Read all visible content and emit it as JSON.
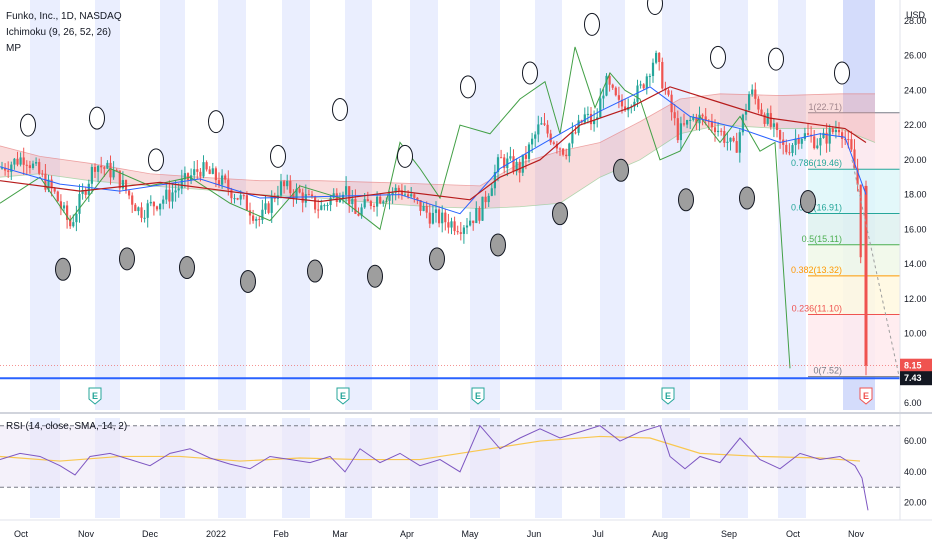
{
  "header": {
    "symbol_line": "Funko, Inc., 1D, NASDAQ",
    "indicator1": "Ichimoku (9, 26, 52, 26)",
    "indicator2": "MP",
    "currency": "USD"
  },
  "rsi_legend": "RSI (14, close, SMA, 14, 2)",
  "colors": {
    "up": "#26a69a",
    "down": "#ef5350",
    "conversion": "#2962ff",
    "base": "#b71c1c",
    "lagging": "#43a047",
    "cloud_up": "#a5d6a7",
    "cloud_down": "#ef9a9a",
    "stripe": "#e3e8fd",
    "last_price": "#ef5350",
    "current_line": "#2962ff",
    "rsi": "#7e57c2",
    "rsi_ma": "#f9c74f"
  },
  "chart_data": {
    "type": "candlestick",
    "title": "Funko, Inc., 1D, NASDAQ",
    "x_labels": [
      "Oct",
      "Nov",
      "Dec",
      "2022",
      "Feb",
      "Mar",
      "Apr",
      "May",
      "Jun",
      "Jul",
      "Aug",
      "Sep",
      "Oct",
      "Nov"
    ],
    "y_ticks": [
      "28.00",
      "26.00",
      "24.00",
      "22.00",
      "20.00",
      "18.00",
      "16.00",
      "14.00",
      "12.00",
      "10.00",
      "6.00"
    ],
    "y_range": [
      5.6,
      29.2
    ],
    "price_path": [
      [
        0,
        19.5
      ],
      [
        25,
        20.2
      ],
      [
        55,
        18.0
      ],
      [
        70,
        16.2
      ],
      [
        95,
        19.8
      ],
      [
        115,
        19.2
      ],
      [
        140,
        17.0
      ],
      [
        170,
        18.0
      ],
      [
        200,
        19.5
      ],
      [
        220,
        18.8
      ],
      [
        245,
        17.5
      ],
      [
        260,
        16.5
      ],
      [
        280,
        18.5
      ],
      [
        300,
        18.0
      ],
      [
        320,
        17.2
      ],
      [
        345,
        18.5
      ],
      [
        355,
        16.8
      ],
      [
        375,
        17.8
      ],
      [
        400,
        18.3
      ],
      [
        430,
        16.8
      ],
      [
        460,
        16.2
      ],
      [
        480,
        17.0
      ],
      [
        500,
        20.0
      ],
      [
        520,
        19.5
      ],
      [
        540,
        22.0
      ],
      [
        565,
        20.5
      ],
      [
        585,
        22.5
      ],
      [
        595,
        22.0
      ],
      [
        605,
        24.5
      ],
      [
        620,
        23.0
      ],
      [
        640,
        24.0
      ],
      [
        655,
        26.0
      ],
      [
        665,
        24.0
      ],
      [
        678,
        21.5
      ],
      [
        695,
        22.5
      ],
      [
        715,
        22.0
      ],
      [
        735,
        20.5
      ],
      [
        750,
        24.0
      ],
      [
        765,
        22.5
      ],
      [
        785,
        20.5
      ],
      [
        800,
        21.5
      ],
      [
        820,
        21.0
      ],
      [
        840,
        22.0
      ],
      [
        852,
        20.2
      ],
      [
        858,
        18.5
      ],
      [
        866,
        7.6
      ]
    ],
    "conversion_line": [
      [
        0,
        19.6
      ],
      [
        60,
        18.6
      ],
      [
        120,
        18.2
      ],
      [
        200,
        18.9
      ],
      [
        260,
        17.8
      ],
      [
        330,
        17.9
      ],
      [
        400,
        18.0
      ],
      [
        460,
        16.9
      ],
      [
        500,
        19.5
      ],
      [
        545,
        21.0
      ],
      [
        600,
        22.8
      ],
      [
        650,
        24.2
      ],
      [
        690,
        22.5
      ],
      [
        740,
        21.8
      ],
      [
        780,
        21.0
      ],
      [
        820,
        21.5
      ],
      [
        845,
        21.3
      ],
      [
        866,
        18.0
      ]
    ],
    "base_line": [
      [
        0,
        18.8
      ],
      [
        80,
        18.2
      ],
      [
        160,
        18.7
      ],
      [
        240,
        18.1
      ],
      [
        320,
        17.6
      ],
      [
        400,
        18.2
      ],
      [
        470,
        17.7
      ],
      [
        500,
        19.0
      ],
      [
        540,
        20.0
      ],
      [
        580,
        22.0
      ],
      [
        630,
        23.0
      ],
      [
        670,
        24.2
      ],
      [
        720,
        23.3
      ],
      [
        770,
        22.4
      ],
      [
        820,
        22.0
      ],
      [
        845,
        21.8
      ],
      [
        866,
        21.0
      ]
    ],
    "lagging_span": [
      [
        0,
        17.5
      ],
      [
        40,
        19.0
      ],
      [
        70,
        16.5
      ],
      [
        110,
        19.5
      ],
      [
        150,
        18.5
      ],
      [
        190,
        19.0
      ],
      [
        230,
        17.5
      ],
      [
        270,
        16.5
      ],
      [
        300,
        18.5
      ],
      [
        340,
        17.8
      ],
      [
        380,
        16.0
      ],
      [
        400,
        21.0
      ],
      [
        420,
        19.5
      ],
      [
        440,
        17.8
      ],
      [
        460,
        22.0
      ],
      [
        490,
        21.5
      ],
      [
        520,
        23.5
      ],
      [
        545,
        24.5
      ],
      [
        560,
        21.5
      ],
      [
        575,
        26.5
      ],
      [
        595,
        23.0
      ],
      [
        610,
        25.0
      ],
      [
        625,
        24.0
      ],
      [
        640,
        23.5
      ],
      [
        660,
        20.0
      ],
      [
        680,
        20.5
      ],
      [
        700,
        22.5
      ],
      [
        720,
        21.0
      ],
      [
        740,
        22.5
      ],
      [
        760,
        20.5
      ],
      [
        775,
        21.0
      ],
      [
        790,
        8.0
      ]
    ],
    "cloud_top": [
      [
        0,
        20.8
      ],
      [
        40,
        20.2
      ],
      [
        90,
        19.8
      ],
      [
        150,
        19.2
      ],
      [
        200,
        19.0
      ],
      [
        260,
        18.8
      ],
      [
        320,
        18.8
      ],
      [
        380,
        18.7
      ],
      [
        430,
        18.6
      ],
      [
        480,
        18.5
      ],
      [
        520,
        19.8
      ],
      [
        560,
        20.5
      ],
      [
        600,
        21.0
      ],
      [
        640,
        22.2
      ],
      [
        680,
        23.5
      ],
      [
        720,
        23.8
      ],
      [
        780,
        23.7
      ],
      [
        840,
        23.8
      ],
      [
        875,
        23.8
      ]
    ],
    "cloud_bottom": [
      [
        0,
        19.0
      ],
      [
        40,
        19.2
      ],
      [
        90,
        18.8
      ],
      [
        150,
        18.5
      ],
      [
        200,
        18.3
      ],
      [
        260,
        18.0
      ],
      [
        320,
        17.8
      ],
      [
        380,
        17.5
      ],
      [
        430,
        17.3
      ],
      [
        480,
        17.2
      ],
      [
        520,
        17.3
      ],
      [
        560,
        17.5
      ],
      [
        600,
        19.0
      ],
      [
        640,
        20.0
      ],
      [
        680,
        21.5
      ],
      [
        720,
        22.0
      ],
      [
        780,
        21.8
      ],
      [
        840,
        21.8
      ],
      [
        875,
        21.0
      ]
    ],
    "fib_levels": [
      {
        "label": "1(22.71)",
        "price": 22.71,
        "fill": "#ffebee"
      },
      {
        "label": "0.786(19.46)",
        "price": 19.46,
        "fill": "#e0f7fa"
      },
      {
        "label": "0.618(16.91)",
        "price": 16.91,
        "fill": "#e0f2f1"
      },
      {
        "label": "0.5(15.11)",
        "price": 15.11,
        "fill": "#f1f8e9"
      },
      {
        "label": "0.382(13.32)",
        "price": 13.32,
        "fill": "#fff8e1"
      },
      {
        "label": "0.236(11.10)",
        "price": 11.1,
        "fill": "#ffebee"
      },
      {
        "label": "0(7.52)",
        "price": 7.52,
        "fill": "#f5f5f5"
      }
    ],
    "last_price": "8.15",
    "current_price": "7.43",
    "current_price_value": 7.43,
    "earnings_markers": [
      "E",
      "E",
      "E",
      "E",
      "E"
    ],
    "earnings_x": [
      95,
      343,
      478,
      668,
      866
    ],
    "rsi": {
      "y_ticks": [
        "60.00",
        "40.00",
        "20.00"
      ],
      "y_range": [
        10,
        75
      ],
      "upper": 70,
      "lower": 30,
      "series": [
        [
          0,
          48
        ],
        [
          20,
          52
        ],
        [
          40,
          50
        ],
        [
          60,
          44
        ],
        [
          75,
          38
        ],
        [
          90,
          50
        ],
        [
          110,
          52
        ],
        [
          130,
          48
        ],
        [
          150,
          44
        ],
        [
          170,
          52
        ],
        [
          190,
          55
        ],
        [
          210,
          49
        ],
        [
          230,
          45
        ],
        [
          250,
          42
        ],
        [
          270,
          50
        ],
        [
          290,
          48
        ],
        [
          310,
          46
        ],
        [
          330,
          50
        ],
        [
          345,
          40
        ],
        [
          360,
          55
        ],
        [
          380,
          46
        ],
        [
          400,
          52
        ],
        [
          420,
          44
        ],
        [
          440,
          48
        ],
        [
          460,
          40
        ],
        [
          480,
          70
        ],
        [
          500,
          55
        ],
        [
          520,
          62
        ],
        [
          540,
          68
        ],
        [
          560,
          62
        ],
        [
          580,
          66
        ],
        [
          600,
          70
        ],
        [
          620,
          60
        ],
        [
          640,
          66
        ],
        [
          660,
          70
        ],
        [
          670,
          50
        ],
        [
          685,
          42
        ],
        [
          700,
          50
        ],
        [
          720,
          46
        ],
        [
          740,
          62
        ],
        [
          760,
          48
        ],
        [
          780,
          42
        ],
        [
          800,
          52
        ],
        [
          820,
          48
        ],
        [
          840,
          50
        ],
        [
          855,
          44
        ],
        [
          862,
          36
        ],
        [
          868,
          15
        ]
      ],
      "ma": [
        [
          0,
          50
        ],
        [
          60,
          47
        ],
        [
          120,
          50
        ],
        [
          180,
          50
        ],
        [
          240,
          47
        ],
        [
          300,
          49
        ],
        [
          360,
          48
        ],
        [
          420,
          48
        ],
        [
          480,
          54
        ],
        [
          540,
          60
        ],
        [
          600,
          63
        ],
        [
          650,
          62
        ],
        [
          700,
          52
        ],
        [
          760,
          50
        ],
        [
          820,
          49
        ],
        [
          860,
          47
        ]
      ]
    }
  }
}
